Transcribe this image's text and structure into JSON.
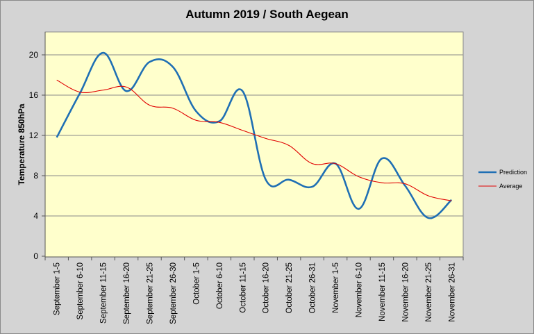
{
  "chart_data": {
    "type": "line",
    "title": "Autumn 2019 / South Aegean",
    "xlabel": "",
    "ylabel": "Temperature 850hPa",
    "ylim": [
      0,
      22
    ],
    "yticks": [
      0,
      4,
      8,
      12,
      16,
      20
    ],
    "grid": true,
    "legend_position": "right",
    "plot_background": "#ffffcc",
    "categories": [
      "September 1-5",
      "September 6-10",
      "September 11-15",
      "September 16-20",
      "September 21-25",
      "September 26-30",
      "October 1-5",
      "October 6-10",
      "October 11-15",
      "October 16-20",
      "October 21-25",
      "October 26-31",
      "November 1-5",
      "November 6-10",
      "November 11-15",
      "November 16-20",
      "November 21-25",
      "November 26-31"
    ],
    "series": [
      {
        "name": "Prediction",
        "color": "#1f6fb4",
        "values": [
          11.8,
          16.2,
          20.2,
          16.4,
          19.3,
          18.8,
          14.4,
          13.4,
          16.4,
          7.6,
          7.6,
          6.9,
          9.2,
          4.7,
          9.7,
          7.0,
          3.8,
          5.6
        ]
      },
      {
        "name": "Average",
        "color": "#e00000",
        "values": [
          17.5,
          16.3,
          16.5,
          16.8,
          15.0,
          14.7,
          13.5,
          13.3,
          12.5,
          11.7,
          11.0,
          9.2,
          9.2,
          7.9,
          7.3,
          7.2,
          6.0,
          5.5
        ]
      }
    ]
  }
}
